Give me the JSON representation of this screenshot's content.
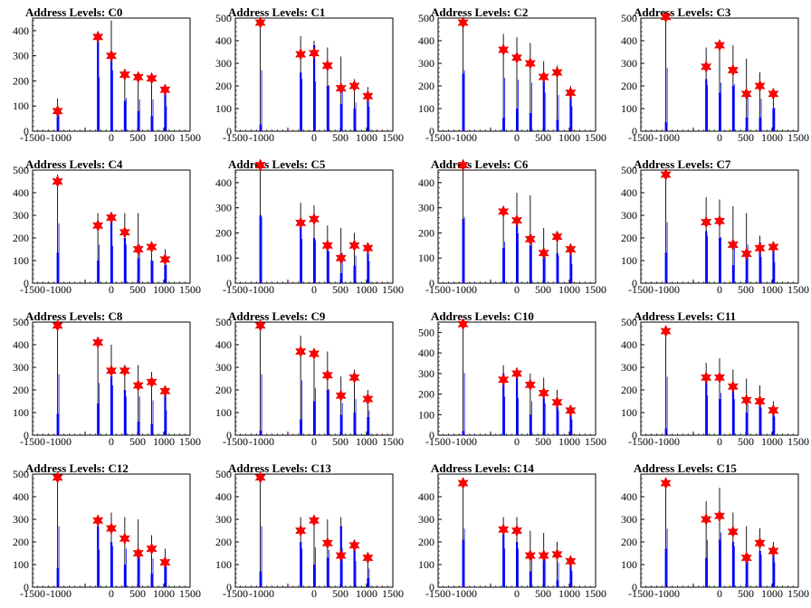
{
  "figure": {
    "title_prefix": "Address Levels: "
  },
  "chart_data": [
    {
      "type": "bar",
      "title": "Address Levels: C0",
      "xlim": [
        -1500,
        1500
      ],
      "ylim": [
        0,
        450
      ],
      "xticks": [
        -1500,
        -1000,
        -500,
        0,
        500,
        1000,
        1500
      ],
      "xtick_labels": [
        "-1500",
        "-1000",
        "",
        "0",
        "500",
        "1000",
        "1500"
      ],
      "yticks": [
        0,
        100,
        200,
        300,
        400
      ],
      "x": [
        -1024,
        -256,
        0,
        256,
        512,
        768,
        1024
      ],
      "bar_max": [
        130,
        390,
        440,
        240,
        230,
        230,
        180
      ],
      "bar_inner": [
        60,
        370,
        300,
        120,
        80,
        60,
        160
      ],
      "marker_y": [
        80,
        375,
        300,
        225,
        215,
        210,
        165
      ]
    },
    {
      "type": "bar",
      "title": "Address Levels: C1",
      "xlim": [
        -1500,
        1500
      ],
      "ylim": [
        0,
        500
      ],
      "xticks": [
        -1500,
        -1000,
        -500,
        0,
        500,
        1000,
        1500
      ],
      "xtick_labels": [
        "-1500",
        "-1000",
        "",
        "0",
        "500",
        "1000",
        "1500"
      ],
      "yticks": [
        0,
        100,
        200,
        300,
        400,
        500
      ],
      "x": [
        -1024,
        -256,
        0,
        256,
        512,
        768,
        1024
      ],
      "bar_max": [
        490,
        420,
        400,
        370,
        330,
        230,
        195
      ],
      "bar_inner": [
        30,
        260,
        380,
        200,
        120,
        100,
        140
      ],
      "marker_y": [
        480,
        340,
        345,
        290,
        190,
        200,
        155
      ]
    },
    {
      "type": "bar",
      "title": "Address Levels: C2",
      "xlim": [
        -1500,
        1500
      ],
      "ylim": [
        0,
        500
      ],
      "xticks": [
        -1500,
        -1000,
        -500,
        0,
        500,
        1000,
        1500
      ],
      "xtick_labels": [
        "-1500",
        "-1000",
        "",
        "0",
        "500",
        "1000",
        "1500"
      ],
      "yticks": [
        0,
        100,
        200,
        300,
        400,
        500
      ],
      "x": [
        -1024,
        -256,
        0,
        256,
        512,
        768,
        1024
      ],
      "bar_max": [
        490,
        430,
        415,
        390,
        310,
        290,
        200
      ],
      "bar_inner": [
        255,
        60,
        100,
        80,
        220,
        50,
        150
      ],
      "marker_y": [
        480,
        360,
        325,
        300,
        240,
        260,
        170
      ]
    },
    {
      "type": "bar",
      "title": "Address Levels: C3",
      "xlim": [
        -1500,
        1500
      ],
      "ylim": [
        0,
        500
      ],
      "xticks": [
        -1500,
        -1000,
        -500,
        0,
        500,
        1000,
        1500
      ],
      "xtick_labels": [
        "-1500",
        "-1000",
        "",
        "0",
        "500",
        "1000",
        "1500"
      ],
      "yticks": [
        0,
        100,
        200,
        300,
        400,
        500
      ],
      "x": [
        -1024,
        -256,
        0,
        256,
        512,
        768,
        1024
      ],
      "bar_max": [
        510,
        370,
        390,
        380,
        320,
        260,
        190
      ],
      "bar_inner": [
        40,
        230,
        170,
        200,
        60,
        60,
        100
      ],
      "marker_y": [
        505,
        285,
        380,
        270,
        165,
        200,
        165
      ]
    },
    {
      "type": "bar",
      "title": "Address Levels: C4",
      "xlim": [
        -1500,
        1500
      ],
      "ylim": [
        0,
        500
      ],
      "xticks": [
        -1500,
        -1000,
        -500,
        0,
        500,
        1000,
        1500
      ],
      "xtick_labels": [
        "-1500",
        "-1000",
        "",
        "0",
        "500",
        "1000",
        "1500"
      ],
      "yticks": [
        0,
        100,
        200,
        300,
        400,
        500
      ],
      "x": [
        -1024,
        -256,
        0,
        256,
        512,
        768,
        1024
      ],
      "bar_max": [
        480,
        310,
        300,
        310,
        310,
        180,
        150
      ],
      "bar_inner": [
        135,
        100,
        290,
        200,
        110,
        100,
        80
      ],
      "marker_y": [
        450,
        255,
        290,
        225,
        150,
        160,
        105
      ]
    },
    {
      "type": "bar",
      "title": "Address Levels: C5",
      "xlim": [
        -1500,
        1500
      ],
      "ylim": [
        0,
        450
      ],
      "xticks": [
        -1500,
        -1000,
        -500,
        0,
        500,
        1000,
        1500
      ],
      "xtick_labels": [
        "-1500",
        "-1000",
        "",
        "0",
        "500",
        "1000",
        "1500"
      ],
      "yticks": [
        0,
        100,
        200,
        300,
        400
      ],
      "x": [
        -1024,
        -256,
        0,
        256,
        512,
        768,
        1024
      ],
      "bar_max": [
        480,
        320,
        310,
        230,
        220,
        200,
        160
      ],
      "bar_inner": [
        270,
        230,
        180,
        160,
        40,
        70,
        120
      ],
      "marker_y": [
        470,
        240,
        255,
        150,
        100,
        150,
        140
      ]
    },
    {
      "type": "bar",
      "title": "Address Levels: C6",
      "xlim": [
        -1500,
        1500
      ],
      "ylim": [
        0,
        450
      ],
      "xticks": [
        -1500,
        -1000,
        -500,
        0,
        500,
        1000,
        1500
      ],
      "xtick_labels": [
        "-1500",
        "-1000",
        "",
        "0",
        "500",
        "1000",
        "1500"
      ],
      "yticks": [
        0,
        100,
        200,
        300,
        400
      ],
      "x": [
        -1024,
        -256,
        0,
        256,
        512,
        768,
        1024
      ],
      "bar_max": [
        480,
        300,
        360,
        350,
        220,
        200,
        140
      ],
      "bar_inner": [
        255,
        140,
        240,
        150,
        100,
        120,
        130
      ],
      "marker_y": [
        470,
        285,
        250,
        175,
        120,
        185,
        135
      ]
    },
    {
      "type": "bar",
      "title": "Address Levels: C7",
      "xlim": [
        -1500,
        1500
      ],
      "ylim": [
        0,
        500
      ],
      "xticks": [
        -1500,
        -1000,
        -500,
        0,
        500,
        1000,
        1500
      ],
      "xtick_labels": [
        "-1500",
        "-1000",
        "",
        "0",
        "500",
        "1000",
        "1500"
      ],
      "yticks": [
        0,
        100,
        200,
        300,
        400,
        500
      ],
      "x": [
        -1024,
        -256,
        0,
        256,
        512,
        768,
        1024
      ],
      "bar_max": [
        490,
        380,
        370,
        340,
        310,
        210,
        170
      ],
      "bar_inner": [
        135,
        230,
        200,
        80,
        110,
        180,
        150
      ],
      "marker_y": [
        480,
        270,
        275,
        170,
        130,
        155,
        160
      ]
    },
    {
      "type": "bar",
      "title": "Address Levels: C8",
      "xlim": [
        -1500,
        1500
      ],
      "ylim": [
        0,
        500
      ],
      "xticks": [
        -1500,
        -1000,
        -500,
        0,
        500,
        1000,
        1500
      ],
      "xtick_labels": [
        "-1500",
        "-1000",
        "",
        "0",
        "500",
        "1000",
        "1500"
      ],
      "yticks": [
        0,
        100,
        200,
        300,
        400,
        500
      ],
      "x": [
        -1024,
        -256,
        0,
        256,
        512,
        768,
        1024
      ],
      "bar_max": [
        490,
        420,
        400,
        310,
        310,
        280,
        200
      ],
      "bar_inner": [
        95,
        140,
        260,
        200,
        60,
        50,
        180
      ],
      "marker_y": [
        485,
        410,
        285,
        285,
        220,
        235,
        195
      ]
    },
    {
      "type": "bar",
      "title": "Address Levels: C9",
      "xlim": [
        -1500,
        1500
      ],
      "ylim": [
        0,
        500
      ],
      "xticks": [
        -1500,
        -1000,
        -500,
        0,
        500,
        1000,
        1500
      ],
      "xtick_labels": [
        "-1500",
        "-1000",
        "",
        "0",
        "500",
        "1000",
        "1500"
      ],
      "yticks": [
        0,
        100,
        200,
        300,
        400,
        500
      ],
      "x": [
        -1024,
        -256,
        0,
        256,
        512,
        768,
        1024
      ],
      "bar_max": [
        490,
        440,
        380,
        370,
        260,
        290,
        200
      ],
      "bar_inner": [
        20,
        70,
        150,
        200,
        90,
        100,
        80
      ],
      "marker_y": [
        485,
        370,
        360,
        265,
        175,
        255,
        160
      ]
    },
    {
      "type": "bar",
      "title": "Address Levels: C10",
      "xlim": [
        -1500,
        1500
      ],
      "ylim": [
        0,
        550
      ],
      "xticks": [
        -1500,
        -1000,
        -500,
        0,
        500,
        1000,
        1500
      ],
      "xtick_labels": [
        "-1500",
        "-1000",
        "",
        "0",
        "500",
        "1000",
        "1500"
      ],
      "yticks": [
        0,
        100,
        200,
        300,
        400,
        500
      ],
      "x": [
        -1024,
        -256,
        0,
        256,
        512,
        768,
        1024
      ],
      "bar_max": [
        550,
        340,
        330,
        300,
        280,
        220,
        140
      ],
      "bar_inner": [
        20,
        300,
        310,
        100,
        180,
        140,
        120
      ],
      "marker_y": [
        540,
        270,
        300,
        245,
        205,
        160,
        120
      ]
    },
    {
      "type": "bar",
      "title": "Address Levels: C11",
      "xlim": [
        -1500,
        1500
      ],
      "ylim": [
        0,
        500
      ],
      "xticks": [
        -1500,
        -1000,
        -500,
        0,
        500,
        1000,
        1500
      ],
      "xtick_labels": [
        "-1500",
        "-1000",
        "",
        "0",
        "500",
        "1000",
        "1500"
      ],
      "yticks": [
        0,
        100,
        200,
        300,
        400,
        500
      ],
      "x": [
        -1024,
        -256,
        0,
        256,
        512,
        768,
        1024
      ],
      "bar_max": [
        470,
        320,
        340,
        290,
        250,
        220,
        150
      ],
      "bar_inner": [
        30,
        260,
        160,
        200,
        100,
        150,
        110
      ],
      "marker_y": [
        460,
        255,
        255,
        215,
        155,
        150,
        110
      ]
    },
    {
      "type": "bar",
      "title": "Address Levels: C12",
      "xlim": [
        -1500,
        1500
      ],
      "ylim": [
        0,
        500
      ],
      "xticks": [
        -1500,
        -1000,
        -500,
        0,
        500,
        1000,
        1500
      ],
      "xtick_labels": [
        "-1500",
        "-1000",
        "",
        "0",
        "500",
        "1000",
        "1500"
      ],
      "yticks": [
        0,
        100,
        200,
        300,
        400,
        500
      ],
      "x": [
        -1024,
        -256,
        0,
        256,
        512,
        768,
        1024
      ],
      "bar_max": [
        490,
        300,
        330,
        310,
        300,
        230,
        170
      ],
      "bar_inner": [
        85,
        270,
        200,
        100,
        150,
        60,
        110
      ],
      "marker_y": [
        485,
        295,
        260,
        215,
        150,
        170,
        110
      ]
    },
    {
      "type": "bar",
      "title": "Address Levels: C13",
      "xlim": [
        -1500,
        1500
      ],
      "ylim": [
        0,
        500
      ],
      "xticks": [
        -1500,
        -1000,
        -500,
        0,
        500,
        1000,
        1500
      ],
      "xtick_labels": [
        "-1500",
        "-1000",
        "",
        "0",
        "500",
        "1000",
        "1500"
      ],
      "yticks": [
        0,
        100,
        200,
        300,
        400,
        500
      ],
      "x": [
        -1024,
        -256,
        0,
        256,
        512,
        768,
        1024
      ],
      "bar_max": [
        490,
        310,
        320,
        300,
        310,
        210,
        150
      ],
      "bar_inner": [
        70,
        200,
        100,
        130,
        270,
        180,
        40
      ],
      "marker_y": [
        485,
        250,
        295,
        195,
        140,
        185,
        130
      ]
    },
    {
      "type": "bar",
      "title": "Address Levels: C14",
      "xlim": [
        -1500,
        1500
      ],
      "ylim": [
        0,
        500
      ],
      "xticks": [
        -1500,
        -1000,
        -500,
        0,
        500,
        1000,
        1500
      ],
      "xtick_labels": [
        "-1500",
        "-1000",
        "",
        "0",
        "500",
        "1000",
        "1500"
      ],
      "yticks": [
        0,
        100,
        200,
        300,
        400
      ],
      "x": [
        -1024,
        -256,
        0,
        256,
        512,
        768,
        1024
      ],
      "bar_max": [
        470,
        310,
        310,
        250,
        240,
        200,
        130
      ],
      "bar_inner": [
        210,
        250,
        200,
        70,
        120,
        30,
        100
      ],
      "marker_y": [
        460,
        255,
        250,
        140,
        140,
        145,
        115
      ]
    },
    {
      "type": "bar",
      "title": "Address Levels: C15",
      "xlim": [
        -1500,
        1500
      ],
      "ylim": [
        0,
        500
      ],
      "xticks": [
        -1500,
        -1000,
        -500,
        0,
        500,
        1000,
        1500
      ],
      "xtick_labels": [
        "-1500",
        "-1000",
        "",
        "0",
        "500",
        "1000",
        "1500"
      ],
      "yticks": [
        0,
        100,
        200,
        300,
        400
      ],
      "x": [
        -1024,
        -256,
        0,
        256,
        512,
        768,
        1024
      ],
      "bar_max": [
        470,
        380,
        440,
        330,
        270,
        260,
        200
      ],
      "bar_inner": [
        170,
        130,
        210,
        200,
        110,
        160,
        150
      ],
      "marker_y": [
        460,
        300,
        315,
        245,
        130,
        195,
        160
      ]
    }
  ],
  "style": {
    "bar_color": "#0000ff",
    "tall_bar_color": "#000000",
    "marker_color": "#ff0000",
    "axis_color": "#000000"
  }
}
